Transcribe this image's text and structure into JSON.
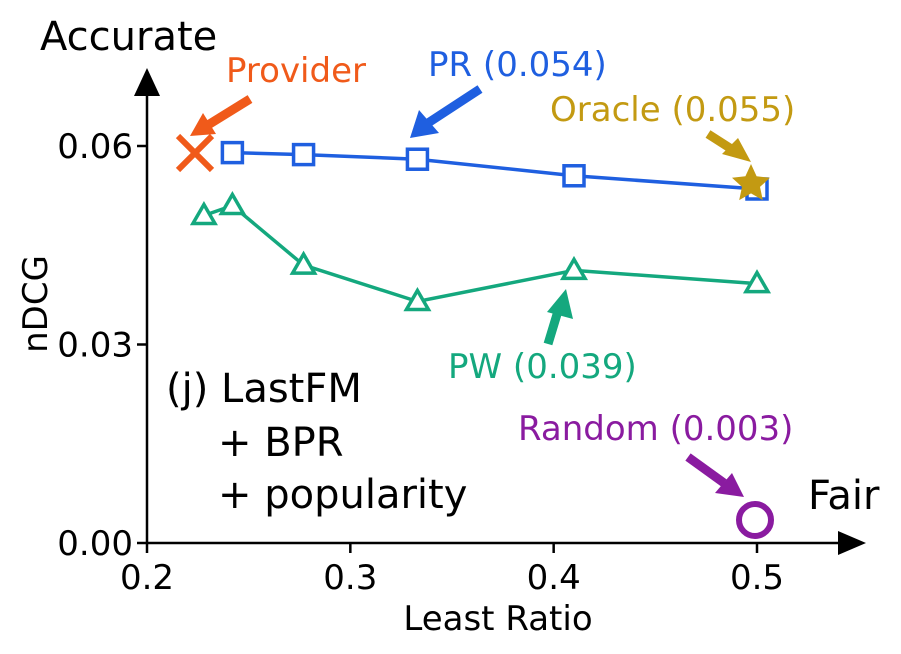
{
  "chart_data": {
    "type": "line",
    "panel_label": "(j) LastFM",
    "panel_label_lines": [
      "+ BPR",
      "+ popularity"
    ],
    "xlabel": "Least Ratio",
    "ylabel": "nDCG",
    "xlim": [
      0.2,
      0.545
    ],
    "ylim": [
      0.0,
      0.07
    ],
    "xticks": [
      0.2,
      0.3,
      0.4,
      0.5
    ],
    "xtick_labels": [
      "0.2",
      "0.3",
      "0.4",
      "0.5"
    ],
    "yticks": [
      0.0,
      0.03,
      0.06
    ],
    "ytick_labels": [
      "0.00",
      "0.03",
      "0.06"
    ],
    "axis_end_labels": {
      "y": "Accurate",
      "x": "Fair"
    },
    "grid": false,
    "series": [
      {
        "name": "PR",
        "color": "#1f5fe0",
        "marker": "square",
        "x": [
          0.242,
          0.277,
          0.333,
          0.41,
          0.5
        ],
        "y": [
          0.059,
          0.0587,
          0.058,
          0.0555,
          0.0535
        ]
      },
      {
        "name": "PW",
        "color": "#14a87e",
        "marker": "triangle",
        "x": [
          0.228,
          0.242,
          0.277,
          0.333,
          0.41,
          0.5
        ],
        "y": [
          0.0495,
          0.051,
          0.042,
          0.0365,
          0.0412,
          0.0392
        ]
      }
    ],
    "annotations": [
      {
        "text": "Provider",
        "color": "#f05a1a",
        "point": {
          "x": 0.222,
          "y": 0.059
        },
        "marker": "x"
      },
      {
        "text": "PR (0.054)",
        "color": "#1f5fe0",
        "point": {
          "x": 0.333,
          "y": 0.058
        }
      },
      {
        "text": "Oracle (0.055)",
        "color": "#c39a12",
        "point": {
          "x": 0.5,
          "y": 0.055
        },
        "marker": "star"
      },
      {
        "text": "PW (0.039)",
        "color": "#14a87e",
        "point": {
          "x": 0.41,
          "y": 0.0412
        }
      },
      {
        "text": "Random (0.003)",
        "color": "#8a1ba0",
        "point": {
          "x": 0.5,
          "y": 0.003
        },
        "marker": "circle"
      }
    ]
  }
}
